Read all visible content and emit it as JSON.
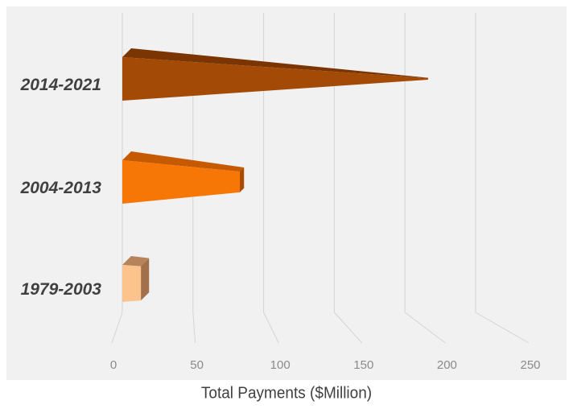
{
  "chart_data": {
    "type": "bar",
    "orientation": "horizontal",
    "style": "3d-cone",
    "categories": [
      "2014-2021",
      "2004-2013",
      "1979-2003"
    ],
    "values": [
      215,
      82,
      12
    ],
    "xlabel": "Total Payments ($Million)",
    "ylabel": "",
    "xlim": [
      0,
      250
    ],
    "xticks": [
      "0",
      "50",
      "100",
      "150",
      "200",
      "250"
    ],
    "grid": true,
    "legend": "none",
    "colors": {
      "2014-2021": {
        "front": "#a34a07",
        "top": "#7a3503",
        "side": "#6b2e02"
      },
      "2004-2013": {
        "front": "#f77706",
        "top": "#c65a02",
        "side": "#a84b00"
      },
      "1979-2003": {
        "front": "#fcc48c",
        "top": "#b7835a",
        "side": "#a2714c"
      }
    },
    "gridline_color": "#d4d4d4",
    "background": "#f1f1f1"
  }
}
